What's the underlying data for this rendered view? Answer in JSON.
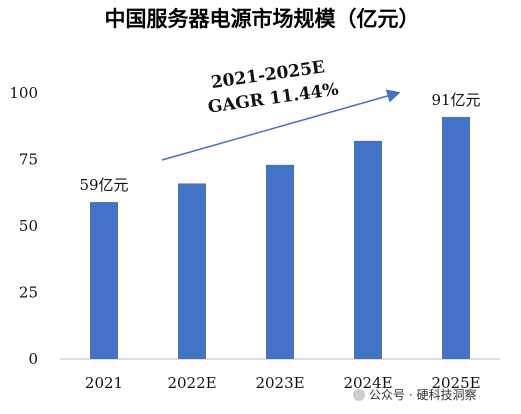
{
  "chart_data": {
    "type": "bar",
    "title": "中国服务器电源市场规模（亿元）",
    "categories": [
      "2021",
      "2022E",
      "2023E",
      "2024E",
      "2025E"
    ],
    "values": [
      59,
      66,
      73,
      82,
      91
    ],
    "ylim": [
      0,
      100
    ],
    "yticks": [
      0,
      25,
      50,
      75,
      100
    ],
    "grid": false,
    "legend": "none",
    "bar_color": "#4472c4",
    "data_labels": [
      {
        "category": "2021",
        "text": "59亿元"
      },
      {
        "category": "2025E",
        "text": "91亿元"
      }
    ],
    "annotation": {
      "line1": "2021-2025E",
      "line2": "GAGR 11.44%",
      "arrow_color": "#4472c4"
    }
  },
  "watermark": {
    "text": "公众号 · 硬科技洞察"
  }
}
